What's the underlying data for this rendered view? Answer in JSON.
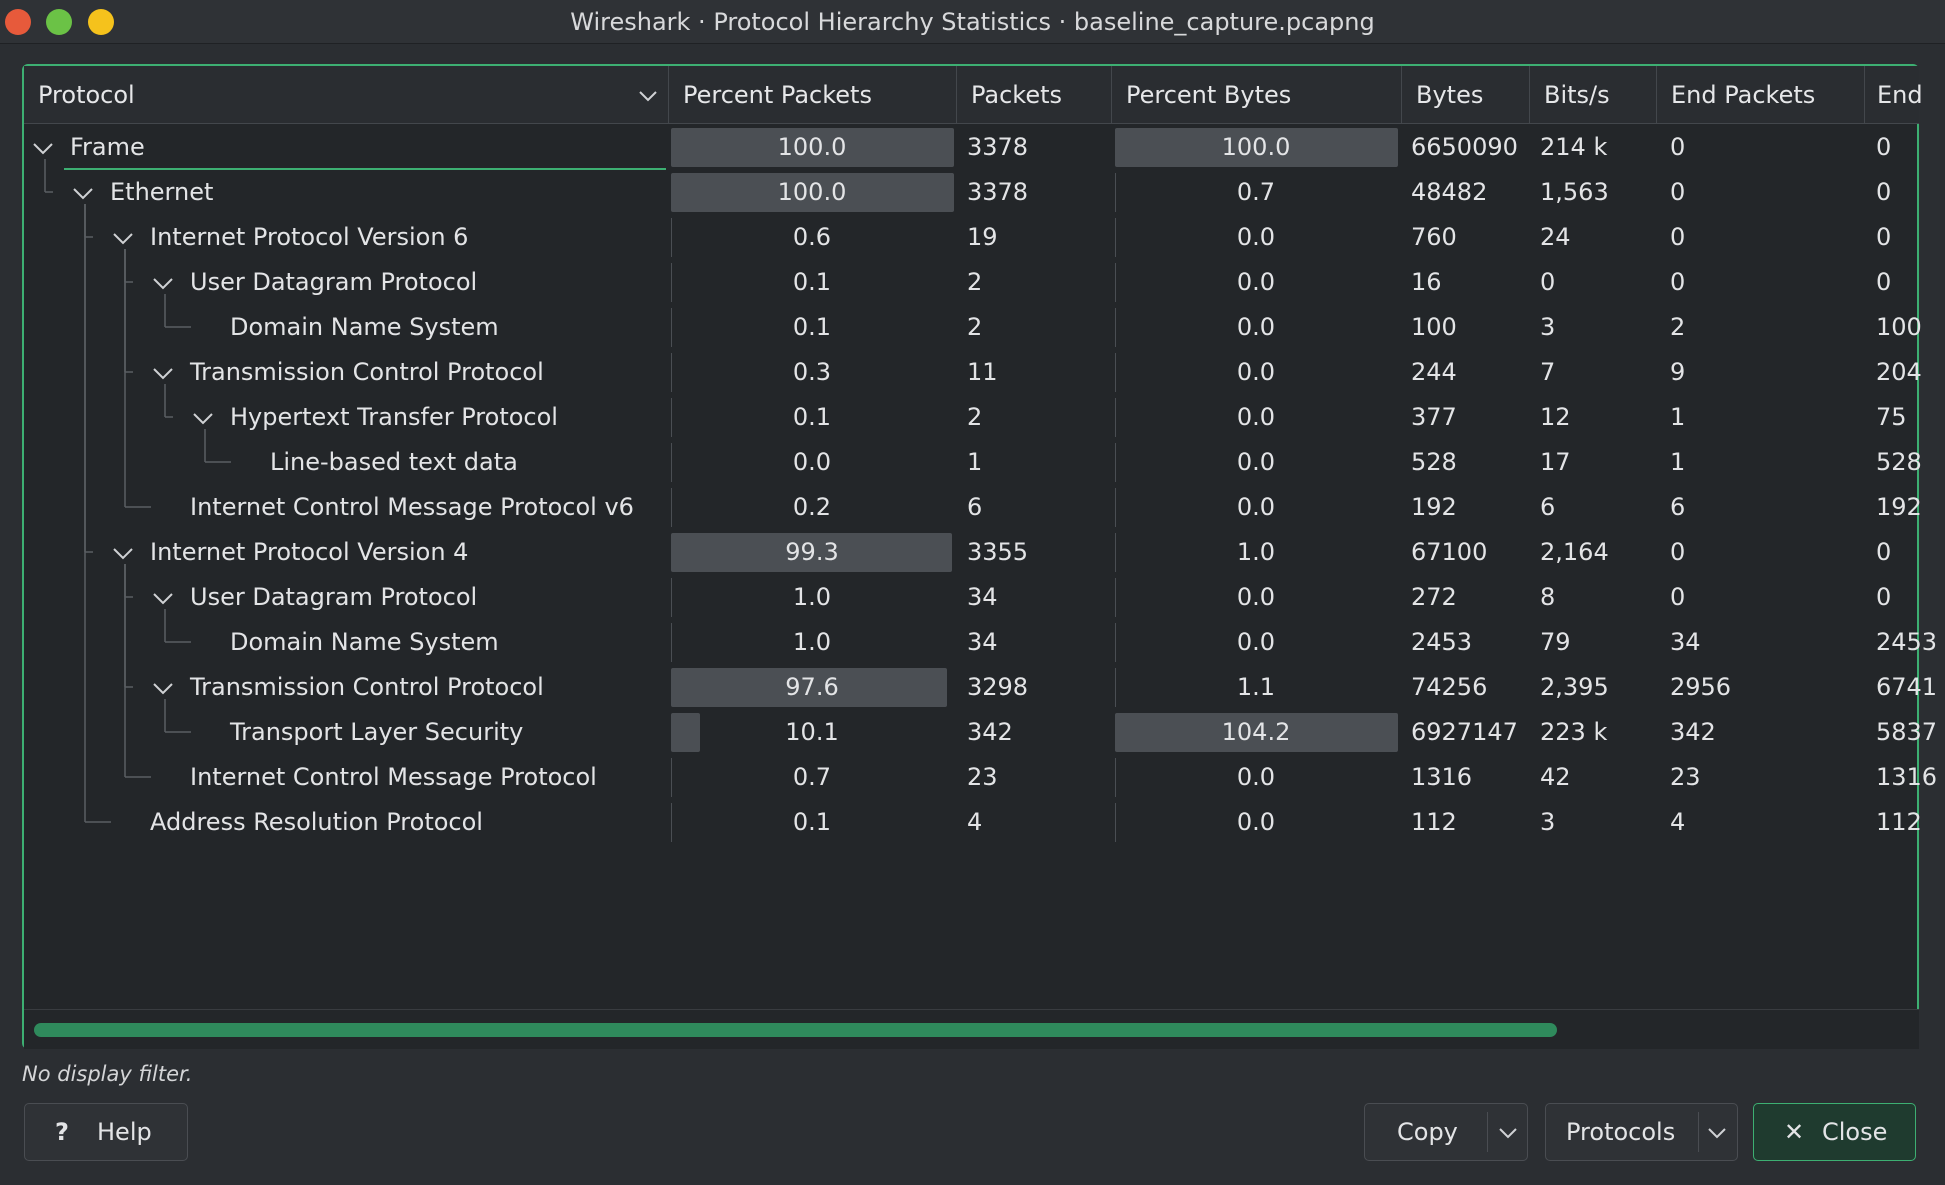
{
  "window": {
    "title": "Wireshark · Protocol Hierarchy Statistics · baseline_capture.pcapng"
  },
  "columns": [
    "Protocol",
    "Percent Packets",
    "Packets",
    "Percent Bytes",
    "Bytes",
    "Bits/s",
    "End Packets",
    "End"
  ],
  "rows": [
    {
      "name": "Frame",
      "depth": 0,
      "expanded": true,
      "pp": "100.0",
      "pp_frac": 1.0,
      "pk": "3378",
      "pb": "100.0",
      "pb_frac": 1.0,
      "by": "6650090",
      "bs": "214 k",
      "ep": "0",
      "eb": "0"
    },
    {
      "name": "Ethernet",
      "depth": 1,
      "expanded": true,
      "pp": "100.0",
      "pp_frac": 1.0,
      "pk": "3378",
      "pb": "0.7",
      "pb_frac": 0.007,
      "by": "48482",
      "bs": "1,563",
      "ep": "0",
      "eb": "0"
    },
    {
      "name": "Internet Protocol Version 6",
      "depth": 2,
      "expanded": true,
      "pp": "0.6",
      "pp_frac": 0.006,
      "pk": "19",
      "pb": "0.0",
      "pb_frac": 0,
      "by": "760",
      "bs": "24",
      "ep": "0",
      "eb": "0"
    },
    {
      "name": "User Datagram Protocol",
      "depth": 3,
      "expanded": true,
      "pp": "0.1",
      "pp_frac": 0.001,
      "pk": "2",
      "pb": "0.0",
      "pb_frac": 0,
      "by": "16",
      "bs": "0",
      "ep": "0",
      "eb": "0"
    },
    {
      "name": "Domain Name System",
      "depth": 4,
      "expanded": false,
      "pp": "0.1",
      "pp_frac": 0.001,
      "pk": "2",
      "pb": "0.0",
      "pb_frac": 0,
      "by": "100",
      "bs": "3",
      "ep": "2",
      "eb": "100"
    },
    {
      "name": "Transmission Control Protocol",
      "depth": 3,
      "expanded": true,
      "pp": "0.3",
      "pp_frac": 0.003,
      "pk": "11",
      "pb": "0.0",
      "pb_frac": 0,
      "by": "244",
      "bs": "7",
      "ep": "9",
      "eb": "204"
    },
    {
      "name": "Hypertext Transfer Protocol",
      "depth": 4,
      "expanded": true,
      "pp": "0.1",
      "pp_frac": 0.001,
      "pk": "2",
      "pb": "0.0",
      "pb_frac": 0,
      "by": "377",
      "bs": "12",
      "ep": "1",
      "eb": "75"
    },
    {
      "name": "Line-based text data",
      "depth": 5,
      "expanded": false,
      "pp": "0.0",
      "pp_frac": 0,
      "pk": "1",
      "pb": "0.0",
      "pb_frac": 0,
      "by": "528",
      "bs": "17",
      "ep": "1",
      "eb": "528"
    },
    {
      "name": "Internet Control Message Protocol v6",
      "depth": 3,
      "expanded": false,
      "pp": "0.2",
      "pp_frac": 0.002,
      "pk": "6",
      "pb": "0.0",
      "pb_frac": 0,
      "by": "192",
      "bs": "6",
      "ep": "6",
      "eb": "192"
    },
    {
      "name": "Internet Protocol Version 4",
      "depth": 2,
      "expanded": true,
      "pp": "99.3",
      "pp_frac": 0.993,
      "pk": "3355",
      "pb": "1.0",
      "pb_frac": 0.01,
      "by": "67100",
      "bs": "2,164",
      "ep": "0",
      "eb": "0"
    },
    {
      "name": "User Datagram Protocol",
      "depth": 3,
      "expanded": true,
      "pp": "1.0",
      "pp_frac": 0.01,
      "pk": "34",
      "pb": "0.0",
      "pb_frac": 0,
      "by": "272",
      "bs": "8",
      "ep": "0",
      "eb": "0"
    },
    {
      "name": "Domain Name System",
      "depth": 4,
      "expanded": false,
      "pp": "1.0",
      "pp_frac": 0.01,
      "pk": "34",
      "pb": "0.0",
      "pb_frac": 0,
      "by": "2453",
      "bs": "79",
      "ep": "34",
      "eb": "2453"
    },
    {
      "name": "Transmission Control Protocol",
      "depth": 3,
      "expanded": true,
      "pp": "97.6",
      "pp_frac": 0.976,
      "pk": "3298",
      "pb": "1.1",
      "pb_frac": 0.011,
      "by": "74256",
      "bs": "2,395",
      "ep": "2956",
      "eb": "6741"
    },
    {
      "name": "Transport Layer Security",
      "depth": 4,
      "expanded": false,
      "pp": "10.1",
      "pp_frac": 0.101,
      "pk": "342",
      "pb": "104.2",
      "pb_frac": 1.0,
      "by": "6927147",
      "bs": "223 k",
      "ep": "342",
      "eb": "5837"
    },
    {
      "name": "Internet Control Message Protocol",
      "depth": 3,
      "expanded": false,
      "pp": "0.7",
      "pp_frac": 0.007,
      "pk": "23",
      "pb": "0.0",
      "pb_frac": 0,
      "by": "1316",
      "bs": "42",
      "ep": "23",
      "eb": "1316"
    },
    {
      "name": "Address Resolution Protocol",
      "depth": 2,
      "expanded": false,
      "pp": "0.1",
      "pp_frac": 0.001,
      "pk": "4",
      "pb": "0.0",
      "pb_frac": 0,
      "by": "112",
      "bs": "3",
      "ep": "4",
      "eb": "112"
    }
  ],
  "scroll": {
    "horizontal_visible_fraction": 0.81
  },
  "status": "No display filter.",
  "buttons": {
    "help": "Help",
    "help_icon": "?",
    "copy": "Copy",
    "protocols": "Protocols",
    "close": "Close",
    "close_icon": "✕"
  },
  "colors": {
    "accent": "#3daf72",
    "bar": "#4b4f54",
    "background": "#232629"
  }
}
